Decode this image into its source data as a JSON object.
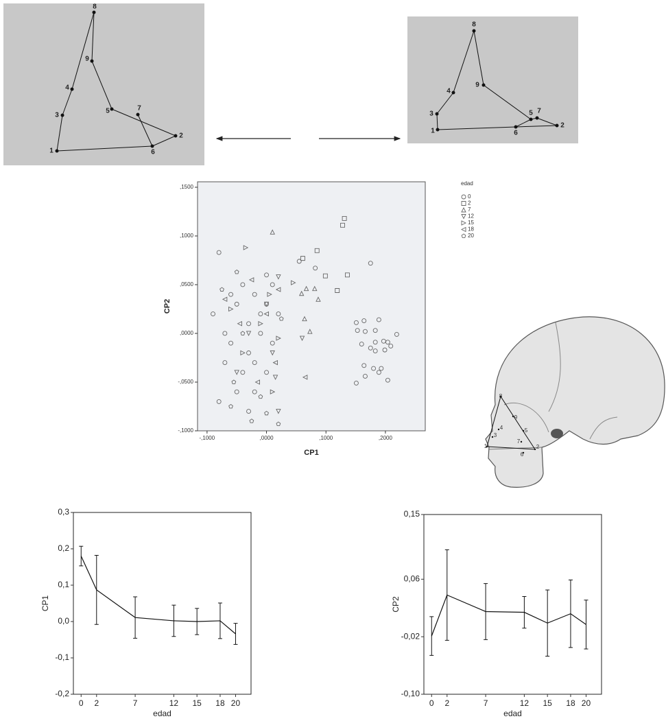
{
  "landmarks": [
    "1",
    "2",
    "3",
    "4",
    "5",
    "6",
    "7",
    "8",
    "9"
  ],
  "chart_data": [
    {
      "type": "scatter",
      "x_label": "CP1",
      "y_label": "CP2",
      "legend_title": "edad",
      "legend": "right",
      "xlim": [
        -0.116,
        0.267
      ],
      "ylim": [
        -0.1,
        0.1556
      ],
      "xticks": [
        {
          "value": -0.1,
          "label": "-,1000"
        },
        {
          "value": 0,
          "label": ",0000"
        },
        {
          "value": 0.1,
          "label": ",1000"
        },
        {
          "value": 0.2,
          "label": ",2000"
        }
      ],
      "yticks": [
        {
          "value": 0.15,
          "label": ",1500"
        },
        {
          "value": 0.1,
          "label": ",1000"
        },
        {
          "value": 0.05,
          "label": ",0500"
        },
        {
          "value": 0,
          "label": ",0000"
        },
        {
          "value": -0.05,
          "label": "-,0500"
        },
        {
          "value": -0.1,
          "label": "-,1000"
        }
      ],
      "series": [
        {
          "name": "0",
          "marker": "circle",
          "color": "#666666",
          "x": [
            0.151,
            0.164,
            0.189,
            0.153,
            0.166,
            0.183,
            0.219,
            0.16,
            0.183,
            0.197,
            0.204,
            0.175,
            0.183,
            0.199,
            0.209,
            0.164,
            0.18,
            0.189,
            0.193,
            0.166,
            0.204,
            0.151,
            0.175,
            0.055,
            0.082,
            -0.08,
            -0.09,
            -0.07,
            -0.06,
            -0.05,
            -0.04,
            -0.03,
            -0.03,
            -0.02,
            -0.02,
            -0.01,
            -0.01,
            0.0,
            0.0,
            0.01,
            0.01,
            -0.04,
            -0.05,
            -0.06,
            -0.07,
            0.02,
            -0.03,
            -0.08,
            0.0,
            -0.02
          ],
          "values": [
            0.011,
            0.013,
            0.014,
            0.003,
            0.002,
            0.003,
            -0.001,
            -0.011,
            -0.009,
            -0.008,
            -0.009,
            -0.015,
            -0.018,
            -0.017,
            -0.013,
            -0.033,
            -0.036,
            -0.04,
            -0.036,
            -0.044,
            -0.048,
            -0.051,
            0.072,
            0.074,
            0.067,
            0.083,
            0.02,
            0.0,
            -0.01,
            0.03,
            0.05,
            0.01,
            -0.02,
            0.04,
            -0.03,
            0.0,
            0.02,
            -0.04,
            0.03,
            -0.01,
            0.05,
            -0.04,
            -0.06,
            0.04,
            -0.03,
            0.02,
            -0.08,
            -0.07,
            0.06,
            -0.06
          ]
        },
        {
          "name": "2",
          "marker": "square",
          "color": "#666666",
          "x": [
            0.061,
            0.085,
            0.099,
            0.119,
            0.128,
            0.131,
            0.136
          ],
          "values": [
            0.077,
            0.085,
            0.059,
            0.044,
            0.111,
            0.118,
            0.06
          ]
        },
        {
          "name": "7",
          "marker": "triangle-up",
          "color": "#666666",
          "x": [
            0.01,
            0.059,
            0.067,
            0.081,
            0.087,
            0.064,
            0.073
          ],
          "values": [
            0.104,
            0.041,
            0.046,
            0.046,
            0.035,
            0.015,
            0.002
          ]
        },
        {
          "name": "12",
          "marker": "triangle-down",
          "color": "#666666",
          "x": [
            0.02,
            0.0,
            0.01,
            -0.03,
            0.02,
            -0.05,
            0.06,
            0.015
          ],
          "values": [
            0.058,
            0.03,
            -0.02,
            0.0,
            -0.08,
            -0.04,
            -0.005,
            -0.045
          ]
        },
        {
          "name": "15",
          "marker": "triangle-right",
          "color": "#666666",
          "x": [
            -0.035,
            0.045,
            0.005,
            -0.01,
            0.02,
            -0.04,
            0.01,
            -0.06
          ],
          "values": [
            0.088,
            0.052,
            0.04,
            0.01,
            -0.005,
            -0.02,
            -0.06,
            0.025
          ]
        },
        {
          "name": "18",
          "marker": "triangle-left",
          "color": "#666666",
          "x": [
            0.065,
            -0.025,
            0.0,
            -0.045,
            0.015,
            -0.015,
            0.02,
            -0.07
          ],
          "values": [
            -0.045,
            0.055,
            0.02,
            0.01,
            -0.03,
            -0.05,
            0.045,
            0.035
          ]
        },
        {
          "name": "20",
          "marker": "pentagon",
          "color": "#666666",
          "x": [
            -0.05,
            -0.06,
            -0.025,
            0.0,
            0.02,
            -0.075,
            -0.04,
            -0.01,
            0.025,
            -0.055
          ],
          "values": [
            0.063,
            -0.075,
            -0.09,
            -0.082,
            -0.093,
            0.045,
            0.0,
            -0.065,
            0.015,
            -0.05
          ]
        }
      ]
    },
    {
      "type": "line",
      "x_label": "edad",
      "y_label": "CP1",
      "color": "#111111",
      "xlim": [
        -1,
        22
      ],
      "ylim": [
        -0.2,
        0.3
      ],
      "xticks": [
        0,
        2,
        7,
        12,
        15,
        18,
        20
      ],
      "yticks": [
        {
          "value": 0.3,
          "label": "0,3"
        },
        {
          "value": 0.2,
          "label": "0,2"
        },
        {
          "value": 0.1,
          "label": "0,1"
        },
        {
          "value": 0,
          "label": "0,0"
        },
        {
          "value": -0.1,
          "label": "-0,1"
        },
        {
          "value": -0.2,
          "label": "-0,2"
        }
      ],
      "x": [
        0,
        2,
        7,
        12,
        15,
        18,
        20
      ],
      "values": [
        0.18,
        0.087,
        0.011,
        0.002,
        0.0,
        0.002,
        -0.034
      ],
      "errors": [
        0.027,
        0.095,
        0.057,
        0.043,
        0.036,
        0.049,
        0.029
      ]
    },
    {
      "type": "line",
      "x_label": "edad",
      "y_label": "CP2",
      "color": "#111111",
      "xlim": [
        -1,
        22
      ],
      "ylim": [
        -0.1,
        0.15
      ],
      "xticks": [
        0,
        2,
        7,
        12,
        15,
        18,
        20
      ],
      "yticks": [
        {
          "value": 0.15,
          "label": "0,15"
        },
        {
          "value": 0.06,
          "label": "0,06"
        },
        {
          "value": -0.02,
          "label": "-0,02"
        },
        {
          "value": -0.1,
          "label": "-0,10"
        }
      ],
      "x": [
        0,
        2,
        7,
        12,
        15,
        18,
        20
      ],
      "values": [
        -0.019,
        0.038,
        0.015,
        0.014,
        -0.001,
        0.012,
        -0.003
      ],
      "errors": [
        0.027,
        0.063,
        0.039,
        0.022,
        0.046,
        0.047,
        0.034
      ]
    }
  ]
}
